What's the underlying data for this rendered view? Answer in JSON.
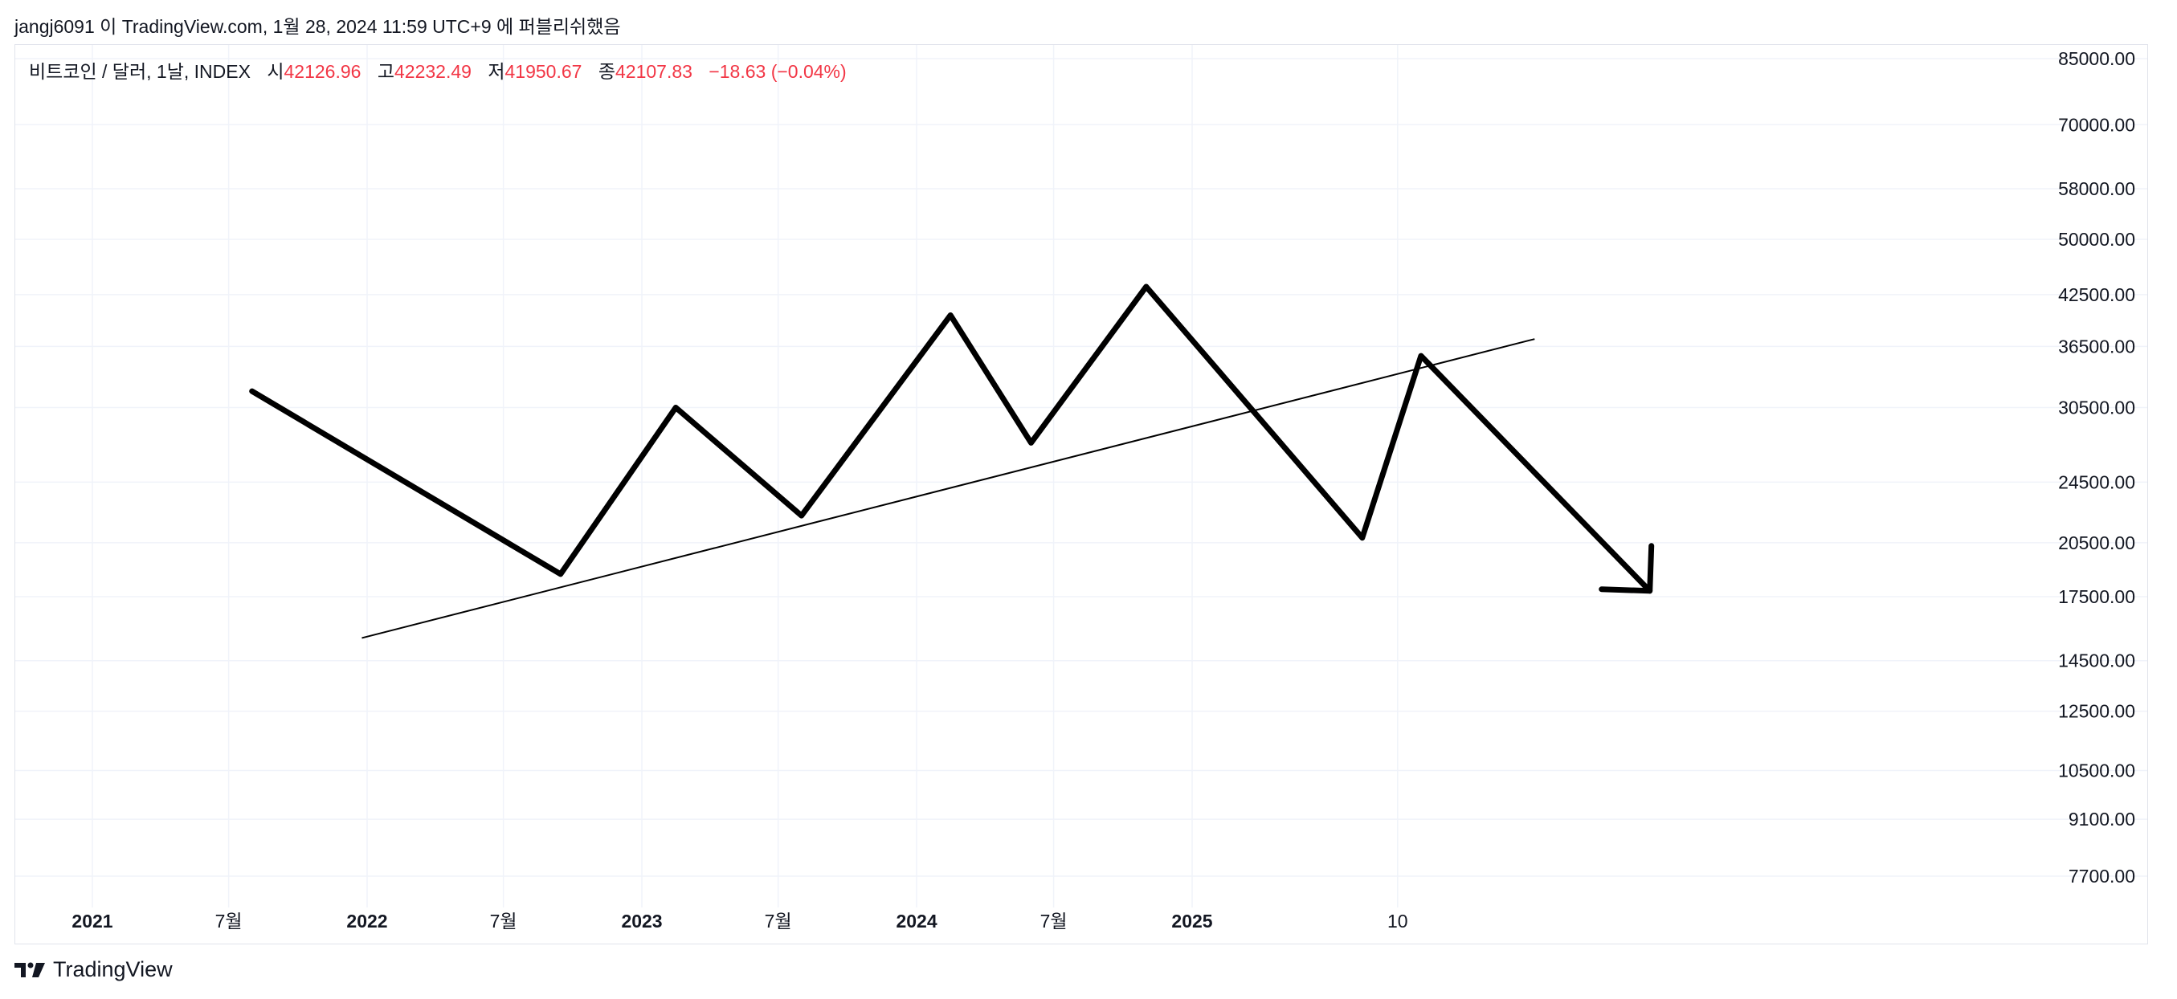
{
  "header": {
    "attribution": "jangj6091 이 TradingView.com, 1월 28, 2024 11:59 UTC+9 에 퍼블리쉬했음"
  },
  "legend": {
    "symbol": "비트코인 / 달러, 1날, INDEX",
    "open_label": "시",
    "open_value": "42126.96",
    "high_label": "고",
    "high_value": "42232.49",
    "low_label": "저",
    "low_value": "41950.67",
    "close_label": "종",
    "close_value": "42107.83",
    "change": "−18.63 (−0.04%)"
  },
  "footer": {
    "brand": "TradingView"
  },
  "colors": {
    "negative": "#f23645",
    "grid": "#f0f3fa",
    "drawing": "#000000",
    "text": "#131722"
  },
  "chart_data": {
    "type": "line",
    "title": "",
    "y_scale": "log",
    "y_ticks": [
      "85000.00",
      "70000.00",
      "58000.00",
      "50000.00",
      "42500.00",
      "36500.00",
      "30500.00",
      "24500.00",
      "20500.00",
      "17500.00",
      "14500.00",
      "12500.00",
      "10500.00",
      "9100.00",
      "7700.00"
    ],
    "x_ticks": [
      {
        "label": "2021",
        "date": "2021-01-01",
        "bold": true
      },
      {
        "label": "7월",
        "date": "2021-07-01",
        "bold": false
      },
      {
        "label": "2022",
        "date": "2022-01-01",
        "bold": true
      },
      {
        "label": "7월",
        "date": "2022-07-01",
        "bold": false
      },
      {
        "label": "2023",
        "date": "2023-01-01",
        "bold": true
      },
      {
        "label": "7월",
        "date": "2023-07-01",
        "bold": false
      },
      {
        "label": "2024",
        "date": "2024-01-01",
        "bold": true
      },
      {
        "label": "7월",
        "date": "2024-07-01",
        "bold": false
      },
      {
        "label": "2025",
        "date": "2025-01-01",
        "bold": true
      },
      {
        "label": "10",
        "date": "2025-10-01",
        "bold": false
      }
    ],
    "ylim": [
      7000,
      88000
    ],
    "xlim": [
      "2020-10-01",
      "2027-05-01"
    ],
    "grid": true,
    "drawings": {
      "projected_path": [
        {
          "x": "2021-08-01",
          "y": 32000
        },
        {
          "x": "2022-09-15",
          "y": 18700
        },
        {
          "x": "2023-02-15",
          "y": 30500
        },
        {
          "x": "2023-08-01",
          "y": 22200
        },
        {
          "x": "2024-02-15",
          "y": 40000
        },
        {
          "x": "2024-06-01",
          "y": 27500
        },
        {
          "x": "2024-11-01",
          "y": 43500
        },
        {
          "x": "2025-08-15",
          "y": 20800
        },
        {
          "x": "2025-11-01",
          "y": 35500
        },
        {
          "x": "2026-09-01",
          "y": 17800
        }
      ],
      "trendline": [
        {
          "x": "2021-12-25",
          "y": 15500
        },
        {
          "x": "2026-04-01",
          "y": 37300
        }
      ],
      "arrow_tip": {
        "x": "2026-09-01",
        "y": 17800
      }
    }
  }
}
